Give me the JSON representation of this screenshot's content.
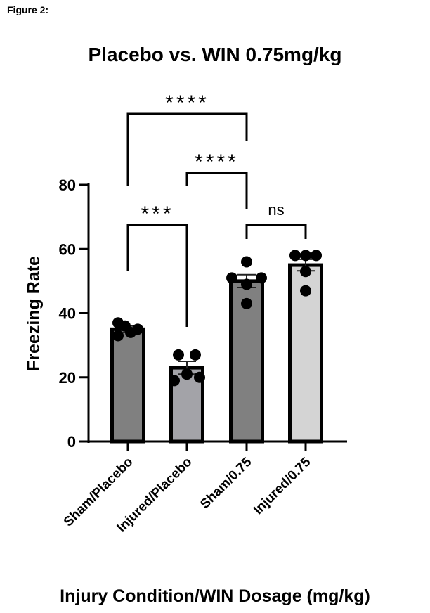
{
  "figure_label": "Figure 2:",
  "chart_data": {
    "type": "bar",
    "title": "Placebo vs. WIN 0.75mg/kg",
    "xlabel": "Injury Condition/WIN Dosage (mg/kg)",
    "ylabel": "Freezing  Rate",
    "ylim": [
      0,
      80
    ],
    "yticks": [
      0,
      20,
      40,
      60,
      80
    ],
    "grid": false,
    "categories": [
      "Sham/Placebo",
      "Injured/Placebo",
      "Sham/0.75",
      "Injured/0.75"
    ],
    "values": [
      35,
      23,
      50,
      55
    ],
    "sem": [
      1.0,
      2.0,
      2.0,
      1.8
    ],
    "bar_colors": [
      "#808080",
      "#a3a3a8",
      "#808080",
      "#d4d4d4"
    ],
    "points": [
      [
        37,
        36,
        34,
        35,
        33
      ],
      [
        27,
        27,
        19,
        21,
        20
      ],
      [
        56,
        51,
        51,
        49,
        43
      ],
      [
        58,
        58,
        58,
        53,
        47
      ]
    ],
    "comparisons": [
      {
        "groups": [
          "Sham/Placebo",
          "Sham/0.75"
        ],
        "label": "****"
      },
      {
        "groups": [
          "Injured/Placebo",
          "Sham/0.75"
        ],
        "label": "****"
      },
      {
        "groups": [
          "Sham/Placebo",
          "Injured/Placebo"
        ],
        "label": "***"
      },
      {
        "groups": [
          "Sham/0.75",
          "Injured/0.75"
        ],
        "label": "ns"
      }
    ]
  }
}
